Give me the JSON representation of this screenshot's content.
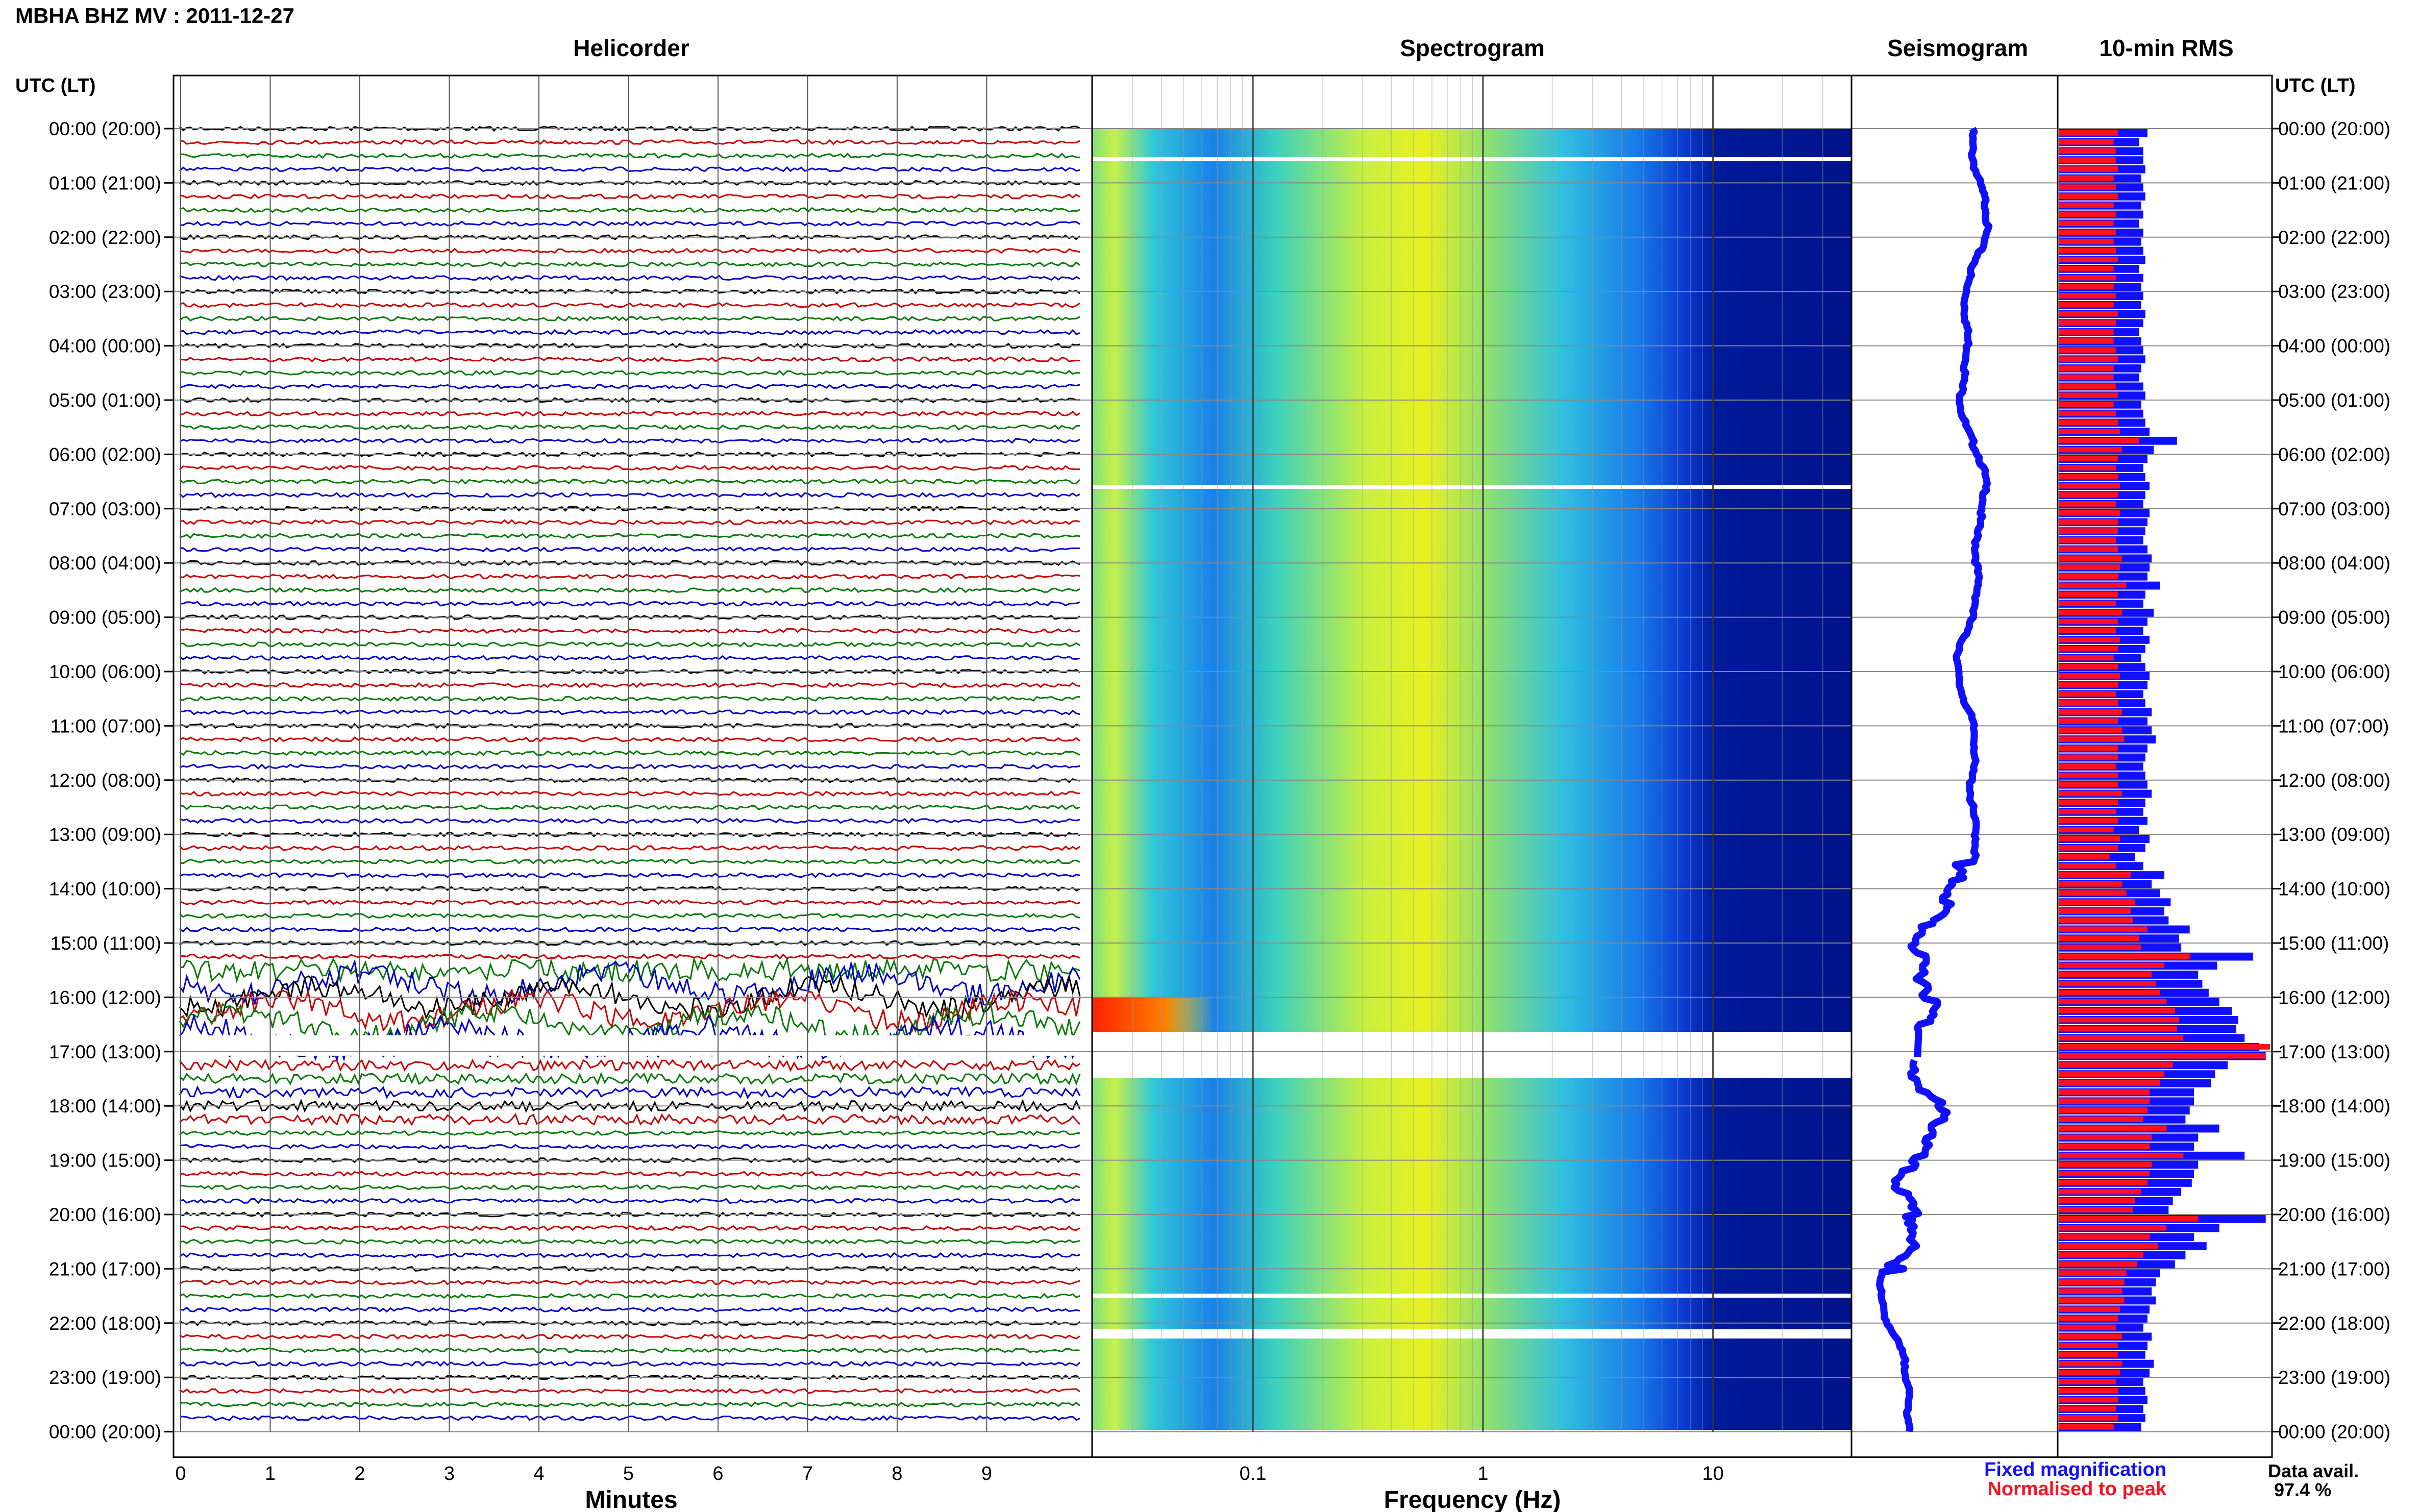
{
  "header": {
    "station_title": "MBHA BHZ MV : 2011-12-27"
  },
  "panels": {
    "helicorder": "Helicorder",
    "spectrogram": "Spectrogram",
    "seismogram": "Seismogram",
    "rms": "10-min RMS"
  },
  "time_axis": {
    "label": "UTC (LT)",
    "ticks": [
      "00:00 (20:00)",
      "01:00 (21:00)",
      "02:00 (22:00)",
      "03:00 (23:00)",
      "04:00 (00:00)",
      "05:00 (01:00)",
      "06:00 (02:00)",
      "07:00 (03:00)",
      "08:00 (04:00)",
      "09:00 (05:00)",
      "10:00 (06:00)",
      "11:00 (07:00)",
      "12:00 (08:00)",
      "13:00 (09:00)",
      "14:00 (10:00)",
      "15:00 (11:00)",
      "16:00 (12:00)",
      "17:00 (13:00)",
      "18:00 (14:00)",
      "19:00 (15:00)",
      "20:00 (16:00)",
      "21:00 (17:00)",
      "22:00 (18:00)",
      "23:00 (19:00)",
      "00:00 (20:00)"
    ]
  },
  "helicorder_axis": {
    "label": "Minutes",
    "ticks": [
      "0",
      "1",
      "2",
      "3",
      "4",
      "5",
      "6",
      "7",
      "8",
      "9"
    ]
  },
  "spectrogram_axis": {
    "label": "Frequency (Hz)",
    "ticks": [
      "0.1",
      "1",
      "10"
    ]
  },
  "legend": {
    "fixed": "Fixed magnification",
    "normalised": "Normalised to peak"
  },
  "availability": {
    "label": "Data avail.",
    "value": "97.4 %"
  },
  "colors": {
    "fixed": "#1010ff",
    "normalised": "#ff1020",
    "grid": "#888888"
  },
  "chart_data": {
    "type": "bar",
    "title": "10-min RMS",
    "x": [
      "00:00",
      "00:10",
      "00:20",
      "00:30",
      "00:40",
      "00:50",
      "01:00",
      "01:10",
      "01:20",
      "01:30",
      "01:40",
      "01:50",
      "02:00",
      "02:10",
      "02:20",
      "02:30",
      "02:40",
      "02:50",
      "03:00",
      "03:10",
      "03:20",
      "03:30",
      "03:40",
      "03:50",
      "04:00",
      "04:10",
      "04:20",
      "04:30",
      "04:40",
      "04:50",
      "05:00",
      "05:10",
      "05:20",
      "05:30",
      "05:40",
      "05:50",
      "06:00",
      "06:10",
      "06:20",
      "06:30",
      "06:40",
      "06:50",
      "07:00",
      "07:10",
      "07:20",
      "07:30",
      "07:40",
      "07:50",
      "08:00",
      "08:10",
      "08:20",
      "08:30",
      "08:40",
      "08:50",
      "09:00",
      "09:10",
      "09:20",
      "09:30",
      "09:40",
      "09:50",
      "10:00",
      "10:10",
      "10:20",
      "10:30",
      "10:40",
      "10:50",
      "11:00",
      "11:10",
      "11:20",
      "11:30",
      "11:40",
      "11:50",
      "12:00",
      "12:10",
      "12:20",
      "12:30",
      "12:40",
      "12:50",
      "13:00",
      "13:10",
      "13:20",
      "13:30",
      "13:40",
      "13:50",
      "14:00",
      "14:10",
      "14:20",
      "14:30",
      "14:40",
      "14:50",
      "15:00",
      "15:10",
      "15:20",
      "15:30",
      "15:40",
      "15:50",
      "16:00",
      "16:10",
      "16:20",
      "16:30",
      "16:40",
      "16:50",
      "17:00",
      "17:10",
      "17:20",
      "17:30",
      "17:40",
      "17:50",
      "18:00",
      "18:10",
      "18:20",
      "18:30",
      "18:40",
      "18:50",
      "19:00",
      "19:10",
      "19:20",
      "19:30",
      "19:40",
      "19:50",
      "20:00",
      "20:10",
      "20:20",
      "20:30",
      "20:40",
      "20:50",
      "21:00",
      "21:10",
      "21:20",
      "21:30",
      "21:40",
      "21:50",
      "22:00",
      "22:10",
      "22:20",
      "22:30",
      "22:40",
      "22:50",
      "23:00",
      "23:10",
      "23:20",
      "23:30",
      "23:40",
      "23:50"
    ],
    "series": [
      {
        "name": "Fixed magnification",
        "values": [
          0.42,
          0.38,
          0.4,
          0.4,
          0.41,
          0.39,
          0.4,
          0.41,
          0.39,
          0.4,
          0.38,
          0.4,
          0.39,
          0.4,
          0.41,
          0.38,
          0.4,
          0.39,
          0.4,
          0.39,
          0.41,
          0.4,
          0.38,
          0.39,
          0.4,
          0.41,
          0.39,
          0.38,
          0.4,
          0.41,
          0.39,
          0.4,
          0.41,
          0.43,
          0.56,
          0.45,
          0.42,
          0.4,
          0.41,
          0.43,
          0.41,
          0.4,
          0.43,
          0.42,
          0.41,
          0.4,
          0.42,
          0.44,
          0.43,
          0.42,
          0.48,
          0.41,
          0.4,
          0.45,
          0.42,
          0.4,
          0.43,
          0.41,
          0.39,
          0.41,
          0.43,
          0.42,
          0.4,
          0.41,
          0.44,
          0.42,
          0.44,
          0.46,
          0.42,
          0.41,
          0.4,
          0.41,
          0.42,
          0.44,
          0.41,
          0.4,
          0.42,
          0.38,
          0.43,
          0.41,
          0.36,
          0.4,
          0.5,
          0.44,
          0.48,
          0.53,
          0.5,
          0.52,
          0.62,
          0.57,
          0.58,
          0.92,
          0.75,
          0.66,
          0.68,
          0.71,
          0.76,
          0.82,
          0.85,
          0.84,
          0.88,
          0.95,
          0.98,
          0.8,
          0.74,
          0.72,
          0.64,
          0.64,
          0.62,
          0.6,
          0.76,
          0.66,
          0.64,
          0.88,
          0.66,
          0.64,
          0.63,
          0.58,
          0.54,
          0.52,
          0.98,
          0.76,
          0.64,
          0.7,
          0.6,
          0.55,
          0.48,
          0.46,
          0.44,
          0.46,
          0.43,
          0.42,
          0.4,
          0.44,
          0.42,
          0.41,
          0.45,
          0.43,
          0.4,
          0.41,
          0.42,
          0.4,
          0.41,
          0.39
        ]
      },
      {
        "name": "Normalised to peak",
        "values": [
          0.28,
          0.26,
          0.27,
          0.27,
          0.28,
          0.26,
          0.27,
          0.28,
          0.26,
          0.27,
          0.26,
          0.27,
          0.26,
          0.27,
          0.28,
          0.26,
          0.27,
          0.26,
          0.27,
          0.26,
          0.28,
          0.27,
          0.26,
          0.26,
          0.27,
          0.28,
          0.26,
          0.26,
          0.27,
          0.28,
          0.26,
          0.27,
          0.28,
          0.29,
          0.38,
          0.3,
          0.28,
          0.27,
          0.28,
          0.29,
          0.28,
          0.27,
          0.29,
          0.28,
          0.28,
          0.27,
          0.28,
          0.3,
          0.29,
          0.28,
          0.32,
          0.28,
          0.27,
          0.3,
          0.28,
          0.27,
          0.29,
          0.28,
          0.26,
          0.28,
          0.29,
          0.28,
          0.27,
          0.28,
          0.3,
          0.28,
          0.3,
          0.31,
          0.28,
          0.28,
          0.27,
          0.28,
          0.28,
          0.3,
          0.28,
          0.27,
          0.28,
          0.26,
          0.29,
          0.28,
          0.24,
          0.27,
          0.34,
          0.3,
          0.32,
          0.36,
          0.34,
          0.35,
          0.42,
          0.38,
          0.39,
          0.62,
          0.5,
          0.44,
          0.46,
          0.48,
          0.51,
          0.55,
          0.57,
          0.56,
          0.59,
          1.0,
          0.98,
          0.54,
          0.5,
          0.48,
          0.43,
          0.43,
          0.42,
          0.4,
          0.51,
          0.44,
          0.43,
          0.59,
          0.44,
          0.43,
          0.42,
          0.39,
          0.36,
          0.35,
          0.66,
          0.51,
          0.43,
          0.47,
          0.4,
          0.37,
          0.32,
          0.31,
          0.3,
          0.31,
          0.29,
          0.28,
          0.27,
          0.3,
          0.28,
          0.28,
          0.3,
          0.29,
          0.27,
          0.28,
          0.28,
          0.27,
          0.28,
          0.26
        ]
      }
    ],
    "xlabel": "",
    "ylabel": "",
    "legend_position": "bottom"
  }
}
